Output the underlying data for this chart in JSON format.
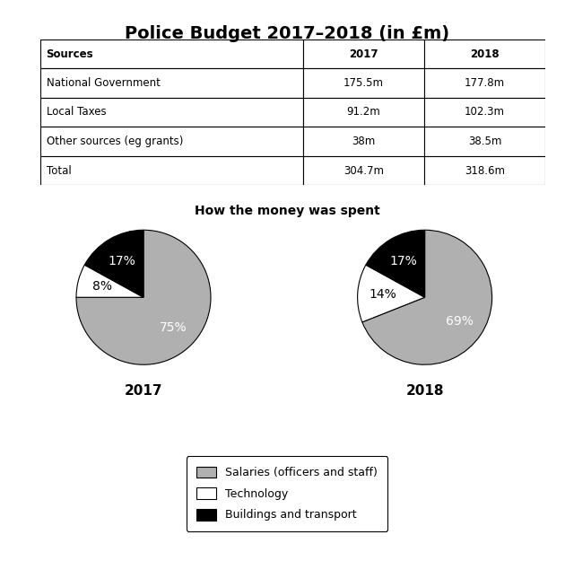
{
  "title": "Police Budget 2017–2018 (in £m)",
  "table": {
    "headers": [
      "Sources",
      "2017",
      "2018"
    ],
    "rows": [
      [
        "National Government",
        "175.5m",
        "177.8m"
      ],
      [
        "Local Taxes",
        "91.2m",
        "102.3m"
      ],
      [
        "Other sources (eg grants)",
        "38m",
        "38.5m"
      ],
      [
        "Total",
        "304.7m",
        "318.6m"
      ]
    ]
  },
  "pie_title": "How the money was spent",
  "pie_2017": {
    "values": [
      75,
      8,
      17
    ],
    "labels": [
      "75%",
      "8%",
      "17%"
    ],
    "colors": [
      "#b0b0b0",
      "#ffffff",
      "#000000"
    ],
    "year": "2017"
  },
  "pie_2018": {
    "values": [
      69,
      14,
      17
    ],
    "labels": [
      "69%",
      "14%",
      "17%"
    ],
    "colors": [
      "#b0b0b0",
      "#ffffff",
      "#000000"
    ],
    "year": "2018"
  },
  "legend_items": [
    {
      "label": "Salaries (officers and staff)",
      "color": "#b0b0b0"
    },
    {
      "label": "Technology",
      "color": "#ffffff"
    },
    {
      "label": "Buildings and transport",
      "color": "#000000"
    }
  ],
  "background_color": "#ffffff",
  "label_colors": {
    "#b0b0b0": "white",
    "#ffffff": "black",
    "#000000": "white"
  }
}
